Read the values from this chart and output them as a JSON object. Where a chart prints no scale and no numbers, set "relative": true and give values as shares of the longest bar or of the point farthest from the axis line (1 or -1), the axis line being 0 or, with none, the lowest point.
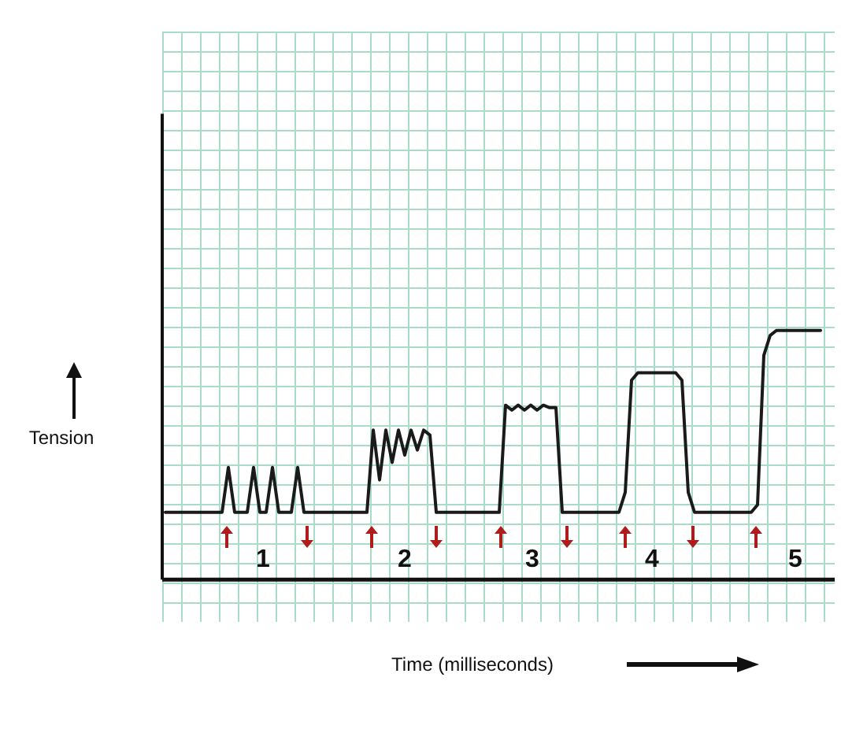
{
  "chart_data": {
    "type": "line",
    "relative": true,
    "xlabel": "Time (milliseconds)",
    "ylabel": "Tension",
    "marker": "none",
    "line_style": "solid",
    "annotations": [
      "1",
      "2",
      "3",
      "4",
      "5"
    ],
    "categories": [
      null,
      null,
      null,
      null,
      null,
      null,
      null,
      null,
      null,
      null,
      null,
      null,
      null,
      null,
      null,
      null,
      null,
      null,
      null,
      null,
      null,
      null,
      null,
      null,
      null,
      null,
      null,
      null,
      null,
      null,
      null,
      null,
      null,
      null,
      null,
      null,
      null,
      null,
      null,
      null,
      null,
      null,
      null,
      null,
      null,
      null,
      null,
      null,
      null,
      null,
      null,
      null,
      null,
      null,
      null,
      null,
      null,
      null,
      null,
      null,
      null,
      null,
      null,
      null,
      null,
      null,
      null,
      null,
      null,
      null,
      null,
      null,
      null,
      null,
      null,
      null,
      null,
      null,
      null,
      null,
      null,
      null,
      null,
      null,
      null,
      null,
      null,
      null,
      null,
      null,
      null,
      null,
      null,
      null,
      null,
      null,
      null,
      null,
      null,
      null,
      null,
      null,
      null,
      null,
      null
    ],
    "series": [
      {
        "color": "#1a1a1a",
        "values": [
          0.27,
          0.27,
          0.27,
          0.27,
          0.27,
          0.27,
          0.27,
          0.27,
          0.27,
          0.27,
          0.45,
          0.27,
          0.27,
          0.27,
          0.45,
          0.27,
          0.27,
          0.45,
          0.27,
          0.27,
          0.27,
          0.45,
          0.27,
          0.27,
          0.27,
          0.27,
          0.27,
          0.27,
          0.27,
          0.27,
          0.27,
          0.27,
          0.27,
          0.6,
          0.4,
          0.6,
          0.47,
          0.6,
          0.5,
          0.6,
          0.52,
          0.6,
          0.58,
          0.27,
          0.27,
          0.27,
          0.27,
          0.27,
          0.27,
          0.27,
          0.27,
          0.27,
          0.27,
          0.27,
          0.7,
          0.68,
          0.7,
          0.68,
          0.7,
          0.68,
          0.7,
          0.69,
          0.69,
          0.27,
          0.27,
          0.27,
          0.27,
          0.27,
          0.27,
          0.27,
          0.27,
          0.27,
          0.27,
          0.35,
          0.8,
          0.83,
          0.83,
          0.83,
          0.83,
          0.83,
          0.83,
          0.83,
          0.8,
          0.35,
          0.27,
          0.27,
          0.27,
          0.27,
          0.27,
          0.27,
          0.27,
          0.27,
          0.27,
          0.27,
          0.3,
          0.9,
          0.98,
          1,
          1,
          1,
          1,
          1,
          1,
          1,
          1
        ]
      }
    ]
  }
}
